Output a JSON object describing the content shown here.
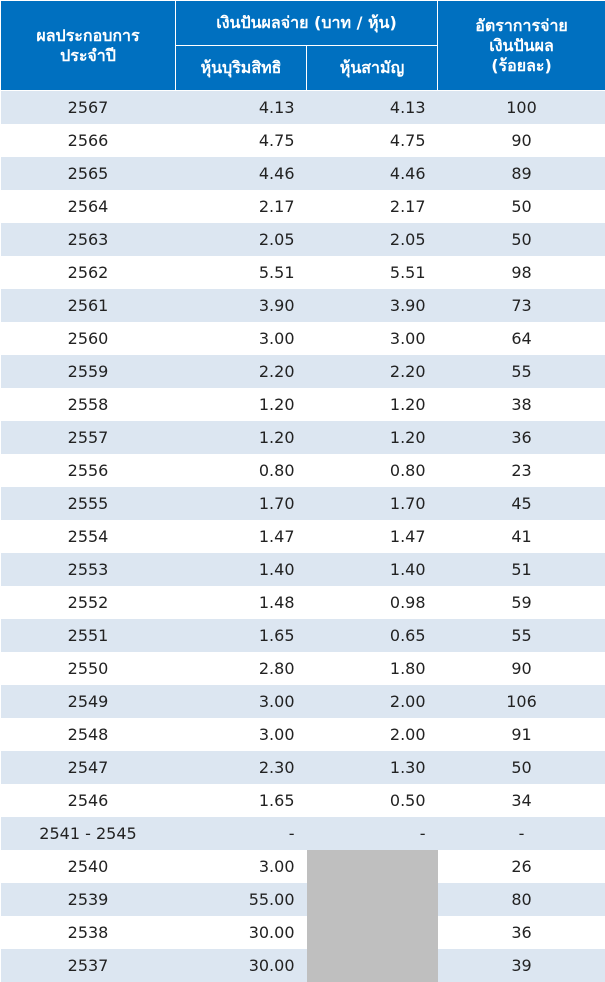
{
  "header": {
    "year": [
      "ผลประกอบการ",
      "ประจำปี"
    ],
    "dividend": "เงินปันผลจ่าย (บาท / หุ้น)",
    "preferred": "หุ้นบุริมสิทธิ",
    "common": "หุ้นสามัญ",
    "payout": [
      "อัตราการจ่าย",
      "เงินปันผล",
      "(ร้อยละ)"
    ]
  },
  "table": {
    "rows": [
      [
        "2567",
        "4.13",
        "4.13",
        "100"
      ],
      [
        "2566",
        "4.75",
        "4.75",
        "90"
      ],
      [
        "2565",
        "4.46",
        "4.46",
        "89"
      ],
      [
        "2564",
        "2.17",
        "2.17",
        "50"
      ],
      [
        "2563",
        "2.05",
        "2.05",
        "50"
      ],
      [
        "2562",
        "5.51",
        "5.51",
        "98"
      ],
      [
        "2561",
        "3.90",
        "3.90",
        "73"
      ],
      [
        "2560",
        "3.00",
        "3.00",
        "64"
      ],
      [
        "2559",
        "2.20",
        "2.20",
        "55"
      ],
      [
        "2558",
        "1.20",
        "1.20",
        "38"
      ],
      [
        "2557",
        "1.20",
        "1.20",
        "36"
      ],
      [
        "2556",
        "0.80",
        "0.80",
        "23"
      ],
      [
        "2555",
        "1.70",
        "1.70",
        "45"
      ],
      [
        "2554",
        "1.47",
        "1.47",
        "41"
      ],
      [
        "2553",
        "1.40",
        "1.40",
        "51"
      ],
      [
        "2552",
        "1.48",
        "0.98",
        "59"
      ],
      [
        "2551",
        "1.65",
        "0.65",
        "55"
      ],
      [
        "2550",
        "2.80",
        "1.80",
        "90"
      ],
      [
        "2549",
        "3.00",
        "2.00",
        "106"
      ],
      [
        "2548",
        "3.00",
        "2.00",
        "91"
      ],
      [
        "2547",
        "2.30",
        "1.30",
        "50"
      ],
      [
        "2546",
        "1.65",
        "0.50",
        "34"
      ],
      [
        "2541 - 2545",
        "-",
        "-",
        "-"
      ],
      [
        "2540",
        "3.00",
        null,
        "26"
      ],
      [
        "2539",
        "55.00",
        null,
        "80"
      ],
      [
        "2538",
        "30.00",
        null,
        "36"
      ],
      [
        "2537",
        "30.00",
        null,
        "39"
      ]
    ]
  }
}
